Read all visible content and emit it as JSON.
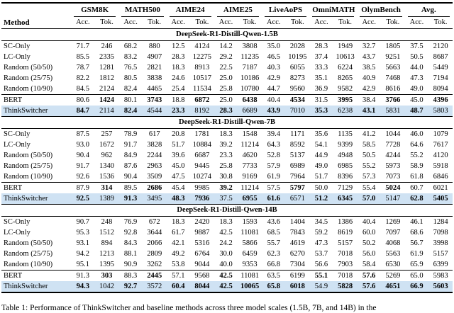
{
  "caption": "Table 1: Performance of ThinkSwitcher and baseline methods across three model scales (1.5B, 7B, and 14B) in the",
  "chart_data": {
    "type": "table",
    "title": "Performance of ThinkSwitcher and baseline methods across three model scales"
  },
  "table": {
    "method_header": "Method",
    "groups": [
      "GSM8K",
      "MATH500",
      "AIME24",
      "AIME25",
      "LiveAoPS",
      "OmniMATH",
      "OlymBench",
      "Avg."
    ],
    "subcols": [
      "Acc.",
      "Tok."
    ],
    "sections": [
      {
        "title": "DeepSeek-R1-Distill-Qwen-1.5B",
        "rows": [
          {
            "method": "SC-Only",
            "values": [
              "71.7",
              "246",
              "68.2",
              "880",
              "12.5",
              "4124",
              "14.2",
              "3808",
              "35.0",
              "2028",
              "28.3",
              "1949",
              "32.7",
              "1805",
              "37.5",
              "2120"
            ],
            "bold": [],
            "highlight": false,
            "rule_above": false
          },
          {
            "method": "LC-Only",
            "values": [
              "85.5",
              "2335",
              "83.2",
              "4907",
              "28.3",
              "12275",
              "29.2",
              "11235",
              "46.5",
              "10195",
              "37.4",
              "10613",
              "43.7",
              "9251",
              "50.5",
              "8687"
            ],
            "bold": [],
            "highlight": false,
            "rule_above": false
          },
          {
            "method": "Random (50/50)",
            "values": [
              "78.7",
              "1281",
              "76.5",
              "2821",
              "18.3",
              "8913",
              "22.5",
              "7187",
              "40.3",
              "6055",
              "33.3",
              "6224",
              "38.5",
              "5663",
              "44.0",
              "5449"
            ],
            "bold": [],
            "highlight": false,
            "rule_above": false
          },
          {
            "method": "Random (25/75)",
            "values": [
              "82.2",
              "1812",
              "80.5",
              "3838",
              "24.6",
              "10517",
              "25.0",
              "10186",
              "42.9",
              "8273",
              "35.1",
              "8265",
              "40.9",
              "7468",
              "47.3",
              "7194"
            ],
            "bold": [],
            "highlight": false,
            "rule_above": false
          },
          {
            "method": "Random (10/90)",
            "values": [
              "84.5",
              "2124",
              "82.4",
              "4465",
              "25.4",
              "11534",
              "25.8",
              "10780",
              "44.7",
              "9560",
              "36.9",
              "9582",
              "42.9",
              "8616",
              "49.0",
              "8094"
            ],
            "bold": [],
            "highlight": false,
            "rule_above": false
          },
          {
            "method": "BERT",
            "values": [
              "80.6",
              "1424",
              "80.1",
              "3743",
              "18.8",
              "6872",
              "25.0",
              "6438",
              "40.4",
              "4534",
              "31.5",
              "3995",
              "38.4",
              "3766",
              "45.0",
              "4396"
            ],
            "bold": [
              1,
              3,
              5,
              7,
              9,
              11,
              13,
              15
            ],
            "highlight": false,
            "rule_above": true
          },
          {
            "method": "ThinkSwitcher",
            "values": [
              "84.7",
              "2114",
              "82.4",
              "4544",
              "23.3",
              "8192",
              "28.3",
              "6689",
              "43.9",
              "7010",
              "35.3",
              "6238",
              "43.1",
              "5831",
              "48.7",
              "5803"
            ],
            "bold": [
              0,
              2,
              4,
              6,
              8,
              10,
              12,
              14
            ],
            "highlight": true,
            "rule_above": false
          }
        ]
      },
      {
        "title": "DeepSeek-R1-Distill-Qwen-7B",
        "rows": [
          {
            "method": "SC-Only",
            "values": [
              "87.5",
              "257",
              "78.9",
              "617",
              "20.8",
              "1781",
              "18.3",
              "1548",
              "39.4",
              "1171",
              "35.6",
              "1135",
              "41.2",
              "1044",
              "46.0",
              "1079"
            ],
            "bold": [],
            "highlight": false,
            "rule_above": false
          },
          {
            "method": "LC-Only",
            "values": [
              "93.0",
              "1672",
              "91.7",
              "3828",
              "51.7",
              "10884",
              "39.2",
              "11214",
              "64.3",
              "8592",
              "54.1",
              "9399",
              "58.5",
              "7728",
              "64.6",
              "7617"
            ],
            "bold": [],
            "highlight": false,
            "rule_above": false
          },
          {
            "method": "Random (50/50)",
            "values": [
              "90.4",
              "962",
              "84.9",
              "2244",
              "39.6",
              "6687",
              "23.3",
              "4620",
              "52.8",
              "5137",
              "44.9",
              "4948",
              "50.5",
              "4244",
              "55.2",
              "4120"
            ],
            "bold": [],
            "highlight": false,
            "rule_above": false
          },
          {
            "method": "Random (25/75)",
            "values": [
              "91.7",
              "1340",
              "87.6",
              "2963",
              "45.0",
              "9445",
              "25.8",
              "7733",
              "57.9",
              "6989",
              "49.0",
              "6985",
              "55.2",
              "5973",
              "58.9",
              "5918"
            ],
            "bold": [],
            "highlight": false,
            "rule_above": false
          },
          {
            "method": "Random (10/90)",
            "values": [
              "92.6",
              "1536",
              "90.4",
              "3509",
              "47.5",
              "10274",
              "30.8",
              "9169",
              "61.9",
              "7964",
              "51.7",
              "8396",
              "57.3",
              "7073",
              "61.8",
              "6846"
            ],
            "bold": [],
            "highlight": false,
            "rule_above": false
          },
          {
            "method": "BERT",
            "values": [
              "87.9",
              "314",
              "89.5",
              "2686",
              "45.4",
              "9985",
              "39.2",
              "11214",
              "57.5",
              "5797",
              "50.0",
              "7129",
              "55.4",
              "5024",
              "60.7",
              "6021"
            ],
            "bold": [
              1,
              3,
              6,
              9,
              13
            ],
            "highlight": false,
            "rule_above": true
          },
          {
            "method": "ThinkSwitcher",
            "values": [
              "92.5",
              "1389",
              "91.3",
              "3495",
              "48.3",
              "7936",
              "37.5",
              "6955",
              "61.6",
              "6571",
              "51.2",
              "6345",
              "57.0",
              "5147",
              "62.8",
              "5405"
            ],
            "bold": [
              0,
              2,
              4,
              5,
              7,
              8,
              10,
              11,
              12,
              14,
              15
            ],
            "highlight": true,
            "rule_above": false
          }
        ]
      },
      {
        "title": "DeepSeek-R1-Distill-Qwen-14B",
        "rows": [
          {
            "method": "SC-Only",
            "values": [
              "90.7",
              "248",
              "76.9",
              "672",
              "18.3",
              "2420",
              "18.3",
              "1593",
              "43.6",
              "1404",
              "34.5",
              "1386",
              "40.4",
              "1269",
              "46.1",
              "1284"
            ],
            "bold": [],
            "highlight": false,
            "rule_above": false
          },
          {
            "method": "LC-Only",
            "values": [
              "95.3",
              "1512",
              "92.8",
              "3644",
              "61.7",
              "9887",
              "42.5",
              "11081",
              "68.5",
              "7843",
              "59.2",
              "8619",
              "60.0",
              "7097",
              "68.6",
              "7098"
            ],
            "bold": [],
            "highlight": false,
            "rule_above": false
          },
          {
            "method": "Random (50/50)",
            "values": [
              "93.1",
              "894",
              "84.3",
              "2066",
              "42.1",
              "5316",
              "24.2",
              "5866",
              "55.7",
              "4619",
              "47.3",
              "5157",
              "50.2",
              "4068",
              "56.7",
              "3998"
            ],
            "bold": [],
            "highlight": false,
            "rule_above": false
          },
          {
            "method": "Random (25/75)",
            "values": [
              "94.2",
              "1213",
              "88.1",
              "2809",
              "49.2",
              "6764",
              "30.0",
              "6459",
              "62.3",
              "6270",
              "53.7",
              "7018",
              "56.0",
              "5563",
              "61.9",
              "5157"
            ],
            "bold": [],
            "highlight": false,
            "rule_above": false
          },
          {
            "method": "Random (10/90)",
            "values": [
              "95.1",
              "1395",
              "90.9",
              "3262",
              "53.8",
              "9044",
              "40.0",
              "9353",
              "66.8",
              "7304",
              "56.6",
              "7903",
              "58.4",
              "6530",
              "65.9",
              "6399"
            ],
            "bold": [],
            "highlight": false,
            "rule_above": false
          },
          {
            "method": "BERT",
            "values": [
              "91.3",
              "303",
              "88.3",
              "2445",
              "57.1",
              "9568",
              "42.5",
              "11081",
              "63.5",
              "6199",
              "55.1",
              "7018",
              "57.6",
              "5269",
              "65.0",
              "5983"
            ],
            "bold": [
              1,
              3,
              6,
              10,
              12
            ],
            "highlight": false,
            "rule_above": true
          },
          {
            "method": "ThinkSwitcher",
            "values": [
              "94.3",
              "1042",
              "92.7",
              "3572",
              "60.4",
              "8044",
              "42.5",
              "10065",
              "65.8",
              "6018",
              "54.9",
              "5828",
              "57.6",
              "4651",
              "66.9",
              "5603"
            ],
            "bold": [
              0,
              2,
              4,
              5,
              6,
              7,
              8,
              9,
              11,
              12,
              13,
              14,
              15
            ],
            "highlight": true,
            "rule_above": false
          }
        ]
      }
    ],
    "highlight_color": "#cfe2f3"
  }
}
